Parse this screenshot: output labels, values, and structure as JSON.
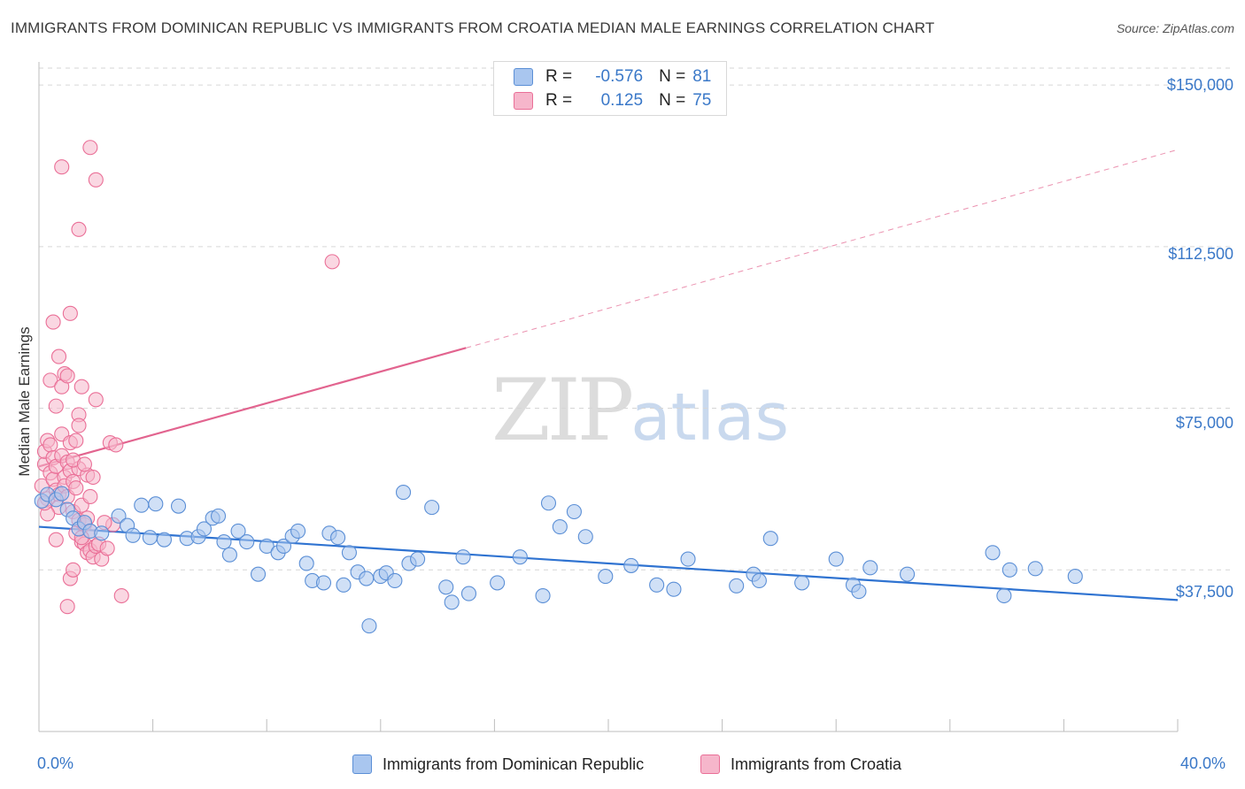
{
  "header": {
    "title": "IMMIGRANTS FROM DOMINICAN REPUBLIC VS IMMIGRANTS FROM CROATIA MEDIAN MALE EARNINGS CORRELATION CHART",
    "source": "Source: ZipAtlas.com"
  },
  "watermark": {
    "zip": "ZIP",
    "atlas": "atlas"
  },
  "colors": {
    "blue_fill": "#a9c6ef",
    "blue_stroke": "#5b8fd6",
    "blue_line": "#2f73d1",
    "pink_fill": "#f6b6cb",
    "pink_stroke": "#ea6f97",
    "pink_line": "#e2648f",
    "accent_text": "#3a78c8"
  },
  "legend": {
    "rows": [
      {
        "r_label": "R =",
        "r_value": "-0.576",
        "n_label": "N =",
        "n_value": "81"
      },
      {
        "r_label": "R =",
        "r_value": "0.125",
        "n_label": "N =",
        "n_value": "75"
      }
    ]
  },
  "bottom_legend": {
    "series1": "Immigrants from Dominican Republic",
    "series2": "Immigrants from Croatia"
  },
  "chart_data": {
    "type": "scatter",
    "title": "IMMIGRANTS FROM DOMINICAN REPUBLIC VS IMMIGRANTS FROM CROATIA MEDIAN MALE EARNINGS CORRELATION CHART",
    "xlabel": "",
    "ylabel": "Median Male Earnings",
    "xlim": [
      0,
      40
    ],
    "ylim": [
      0,
      157000
    ],
    "x_tick_labels": [
      "0.0%",
      "40.0%"
    ],
    "y_ticks": [
      37500,
      75000,
      112500,
      150000
    ],
    "y_tick_labels": [
      "$37,500",
      "$75,000",
      "$112,500",
      "$150,000"
    ],
    "grid": true,
    "legend_position": "top-center",
    "series": [
      {
        "name": "Immigrants from Dominican Republic",
        "r": -0.576,
        "n": 81,
        "trend": {
          "x": [
            0,
            40
          ],
          "y": [
            47500,
            30500
          ],
          "style": "solid"
        },
        "points": [
          [
            0.1,
            53500
          ],
          [
            0.3,
            55000
          ],
          [
            0.6,
            53800
          ],
          [
            0.8,
            55200
          ],
          [
            1.0,
            51500
          ],
          [
            1.2,
            49500
          ],
          [
            1.4,
            47000
          ],
          [
            1.6,
            48500
          ],
          [
            1.8,
            46500
          ],
          [
            2.2,
            46000
          ],
          [
            2.8,
            50000
          ],
          [
            3.1,
            47800
          ],
          [
            3.3,
            45500
          ],
          [
            3.6,
            52500
          ],
          [
            3.9,
            45000
          ],
          [
            4.1,
            52800
          ],
          [
            4.4,
            44500
          ],
          [
            4.9,
            52300
          ],
          [
            5.2,
            44800
          ],
          [
            5.6,
            45200
          ],
          [
            5.8,
            47000
          ],
          [
            6.1,
            49500
          ],
          [
            6.3,
            50000
          ],
          [
            6.5,
            44000
          ],
          [
            6.7,
            41000
          ],
          [
            7.0,
            46500
          ],
          [
            7.3,
            44000
          ],
          [
            7.7,
            36500
          ],
          [
            8.0,
            43000
          ],
          [
            8.4,
            41500
          ],
          [
            8.6,
            43000
          ],
          [
            8.9,
            45300
          ],
          [
            9.1,
            46500
          ],
          [
            9.4,
            39000
          ],
          [
            9.6,
            35000
          ],
          [
            10.0,
            34500
          ],
          [
            10.2,
            46000
          ],
          [
            10.5,
            45000
          ],
          [
            10.7,
            34000
          ],
          [
            10.9,
            41500
          ],
          [
            11.2,
            37000
          ],
          [
            11.5,
            35500
          ],
          [
            11.6,
            24500
          ],
          [
            12.0,
            36000
          ],
          [
            12.2,
            36800
          ],
          [
            12.5,
            35000
          ],
          [
            12.8,
            55500
          ],
          [
            13.0,
            39000
          ],
          [
            13.3,
            40000
          ],
          [
            13.8,
            52000
          ],
          [
            14.3,
            33500
          ],
          [
            14.5,
            30000
          ],
          [
            14.9,
            40500
          ],
          [
            15.1,
            32000
          ],
          [
            16.1,
            34500
          ],
          [
            16.9,
            40500
          ],
          [
            17.7,
            31500
          ],
          [
            17.9,
            53000
          ],
          [
            18.3,
            47500
          ],
          [
            18.8,
            51000
          ],
          [
            19.2,
            45200
          ],
          [
            19.9,
            36000
          ],
          [
            20.8,
            38500
          ],
          [
            21.7,
            34000
          ],
          [
            22.3,
            33000
          ],
          [
            22.8,
            40000
          ],
          [
            24.5,
            33800
          ],
          [
            25.1,
            36500
          ],
          [
            25.3,
            35000
          ],
          [
            25.7,
            44800
          ],
          [
            26.8,
            34500
          ],
          [
            28.0,
            40000
          ],
          [
            28.6,
            34000
          ],
          [
            28.8,
            32500
          ],
          [
            29.2,
            38000
          ],
          [
            30.5,
            36500
          ],
          [
            33.5,
            41500
          ],
          [
            34.1,
            37500
          ],
          [
            33.9,
            31500
          ],
          [
            35.0,
            37800
          ],
          [
            36.4,
            36000
          ]
        ]
      },
      {
        "name": "Immigrants from Croatia",
        "r": 0.125,
        "n": 75,
        "trend": {
          "x": [
            0,
            15
          ],
          "y": [
            61500,
            89000
          ],
          "style": "solid",
          "extended": {
            "x": [
              15,
              40
            ],
            "y": [
              89000,
              135000
            ],
            "style": "dashed"
          }
        },
        "points": [
          [
            0.1,
            57000
          ],
          [
            0.2,
            62000
          ],
          [
            0.2,
            65000
          ],
          [
            0.3,
            67500
          ],
          [
            0.3,
            54000
          ],
          [
            0.4,
            60000
          ],
          [
            0.4,
            66500
          ],
          [
            0.5,
            58500
          ],
          [
            0.5,
            63500
          ],
          [
            0.6,
            56000
          ],
          [
            0.6,
            61500
          ],
          [
            0.7,
            55000
          ],
          [
            0.7,
            52000
          ],
          [
            0.8,
            69000
          ],
          [
            0.8,
            64000
          ],
          [
            0.9,
            59000
          ],
          [
            0.9,
            57000
          ],
          [
            1.0,
            62500
          ],
          [
            1.0,
            54500
          ],
          [
            1.1,
            67000
          ],
          [
            1.1,
            60500
          ],
          [
            1.2,
            51000
          ],
          [
            1.2,
            58000
          ],
          [
            1.3,
            56500
          ],
          [
            1.3,
            46000
          ],
          [
            1.4,
            49000
          ],
          [
            1.4,
            61000
          ],
          [
            1.5,
            44000
          ],
          [
            1.5,
            52500
          ],
          [
            1.6,
            48000
          ],
          [
            1.6,
            43500
          ],
          [
            1.7,
            41500
          ],
          [
            1.7,
            59500
          ],
          [
            1.8,
            46500
          ],
          [
            1.8,
            42000
          ],
          [
            1.9,
            40500
          ],
          [
            2.0,
            43000
          ],
          [
            0.4,
            81500
          ],
          [
            0.5,
            95000
          ],
          [
            0.6,
            75500
          ],
          [
            0.7,
            87000
          ],
          [
            0.8,
            80000
          ],
          [
            0.9,
            83000
          ],
          [
            1.0,
            82500
          ],
          [
            1.1,
            97000
          ],
          [
            1.2,
            63000
          ],
          [
            1.3,
            67500
          ],
          [
            1.4,
            73500
          ],
          [
            1.4,
            71000
          ],
          [
            1.5,
            80000
          ],
          [
            1.6,
            62000
          ],
          [
            1.7,
            49500
          ],
          [
            1.8,
            54500
          ],
          [
            1.9,
            59000
          ],
          [
            2.0,
            77000
          ],
          [
            2.5,
            67000
          ],
          [
            2.7,
            66500
          ],
          [
            2.1,
            43500
          ],
          [
            2.2,
            40000
          ],
          [
            2.4,
            42500
          ],
          [
            0.8,
            131000
          ],
          [
            1.4,
            116500
          ],
          [
            2.0,
            128000
          ],
          [
            1.8,
            135500
          ],
          [
            10.3,
            109000
          ],
          [
            1.1,
            35500
          ],
          [
            1.0,
            29000
          ],
          [
            2.9,
            31500
          ],
          [
            0.3,
            50500
          ],
          [
            0.6,
            44500
          ],
          [
            1.2,
            37500
          ],
          [
            0.2,
            53000
          ],
          [
            2.6,
            48000
          ],
          [
            1.5,
            45000
          ],
          [
            2.3,
            48500
          ]
        ]
      }
    ]
  }
}
